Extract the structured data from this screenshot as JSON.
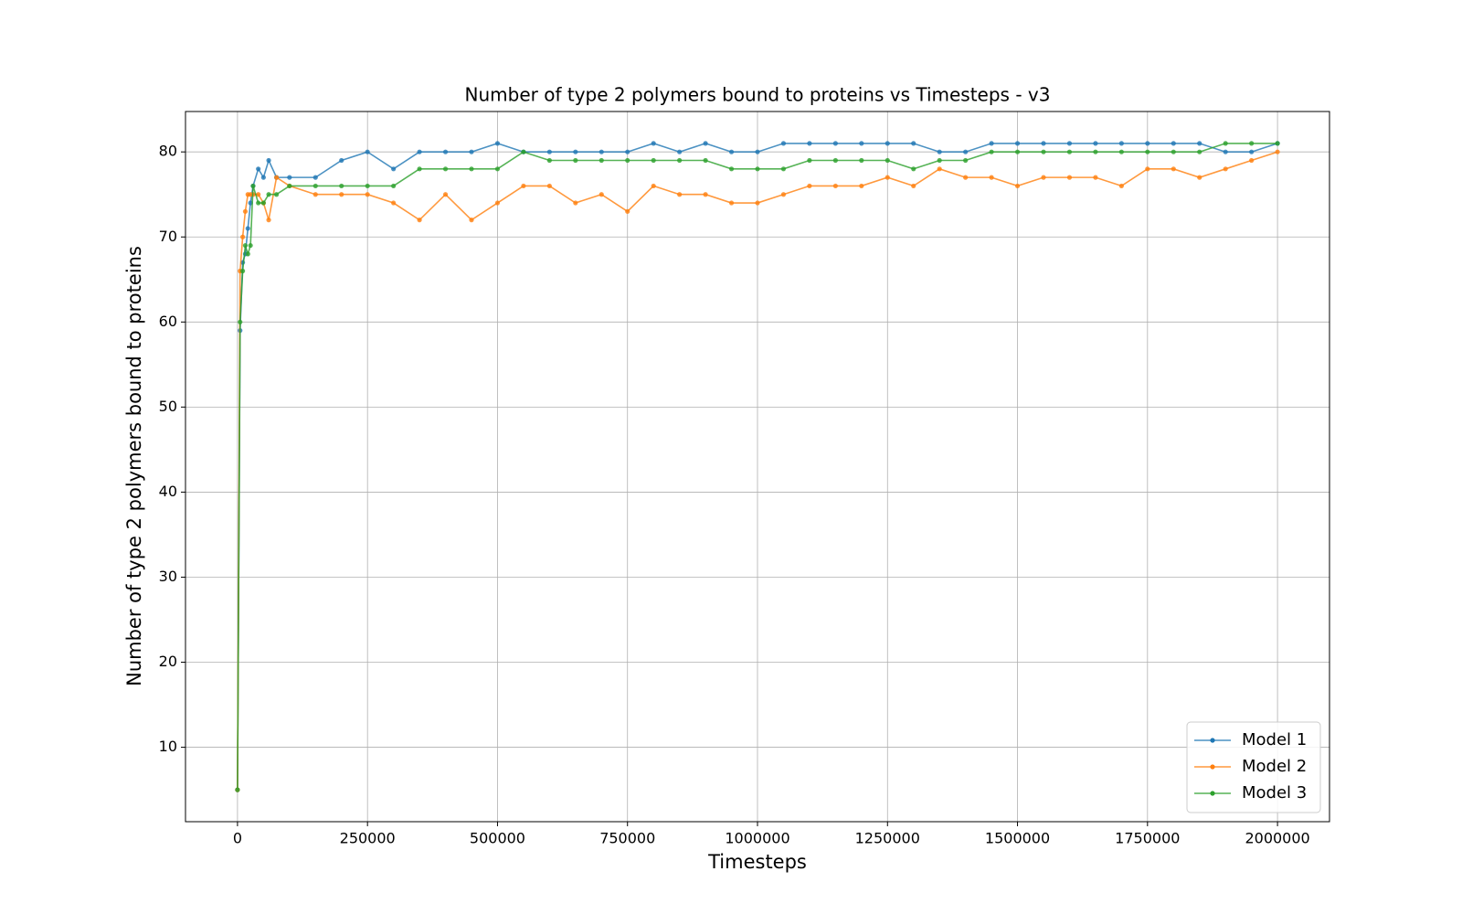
{
  "chart_data": {
    "type": "line",
    "title": "Number of type 2 polymers bound to proteins vs Timesteps - v3",
    "x_label": "Timesteps",
    "y_label": "Number of type 2 polymers bound to proteins",
    "x": [
      0,
      5000,
      10000,
      15000,
      20000,
      25000,
      30000,
      40000,
      50000,
      60000,
      75000,
      100000,
      150000,
      200000,
      250000,
      300000,
      350000,
      400000,
      450000,
      500000,
      550000,
      600000,
      650000,
      700000,
      750000,
      800000,
      850000,
      900000,
      950000,
      1000000,
      1050000,
      1100000,
      1150000,
      1200000,
      1250000,
      1300000,
      1350000,
      1400000,
      1450000,
      1500000,
      1550000,
      1600000,
      1650000,
      1700000,
      1750000,
      1800000,
      1850000,
      1900000,
      1950000,
      2000000
    ],
    "series": [
      {
        "name": "Model 1",
        "color": "#1f77b4",
        "values": [
          5,
          59,
          67,
          68,
          71,
          74,
          76,
          78,
          77,
          79,
          77,
          77,
          77,
          79,
          80,
          78,
          80,
          80,
          80,
          81,
          80,
          80,
          80,
          80,
          80,
          81,
          80,
          81,
          80,
          80,
          81,
          81,
          81,
          81,
          81,
          81,
          80,
          80,
          81,
          81,
          81,
          81,
          81,
          81,
          81,
          81,
          81,
          80,
          80,
          81
        ]
      },
      {
        "name": "Model 2",
        "color": "#ff7f0e",
        "values": [
          5,
          66,
          70,
          73,
          75,
          75,
          75,
          75,
          74,
          72,
          77,
          76,
          75,
          75,
          75,
          74,
          72,
          75,
          72,
          74,
          76,
          76,
          74,
          75,
          73,
          76,
          75,
          75,
          74,
          74,
          75,
          76,
          76,
          76,
          77,
          76,
          78,
          77,
          77,
          76,
          77,
          77,
          77,
          76,
          78,
          78,
          77,
          78,
          79,
          80
        ]
      },
      {
        "name": "Model 3",
        "color": "#2ca02c",
        "values": [
          5,
          60,
          66,
          69,
          68,
          69,
          76,
          74,
          74,
          75,
          75,
          76,
          76,
          76,
          76,
          76,
          78,
          78,
          78,
          78,
          80,
          79,
          79,
          79,
          79,
          79,
          79,
          79,
          78,
          78,
          78,
          79,
          79,
          79,
          79,
          78,
          79,
          79,
          80,
          80,
          80,
          80,
          80,
          80,
          80,
          80,
          80,
          81,
          81,
          81
        ]
      }
    ],
    "xlim": [
      -100000,
      2100000
    ],
    "ylim": [
      1.25,
      84.75
    ],
    "xticks": [
      0,
      250000,
      500000,
      750000,
      1000000,
      1250000,
      1500000,
      1750000,
      2000000
    ],
    "yticks": [
      10,
      20,
      30,
      40,
      50,
      60,
      70,
      80
    ],
    "grid": true,
    "legend": "lower right"
  }
}
